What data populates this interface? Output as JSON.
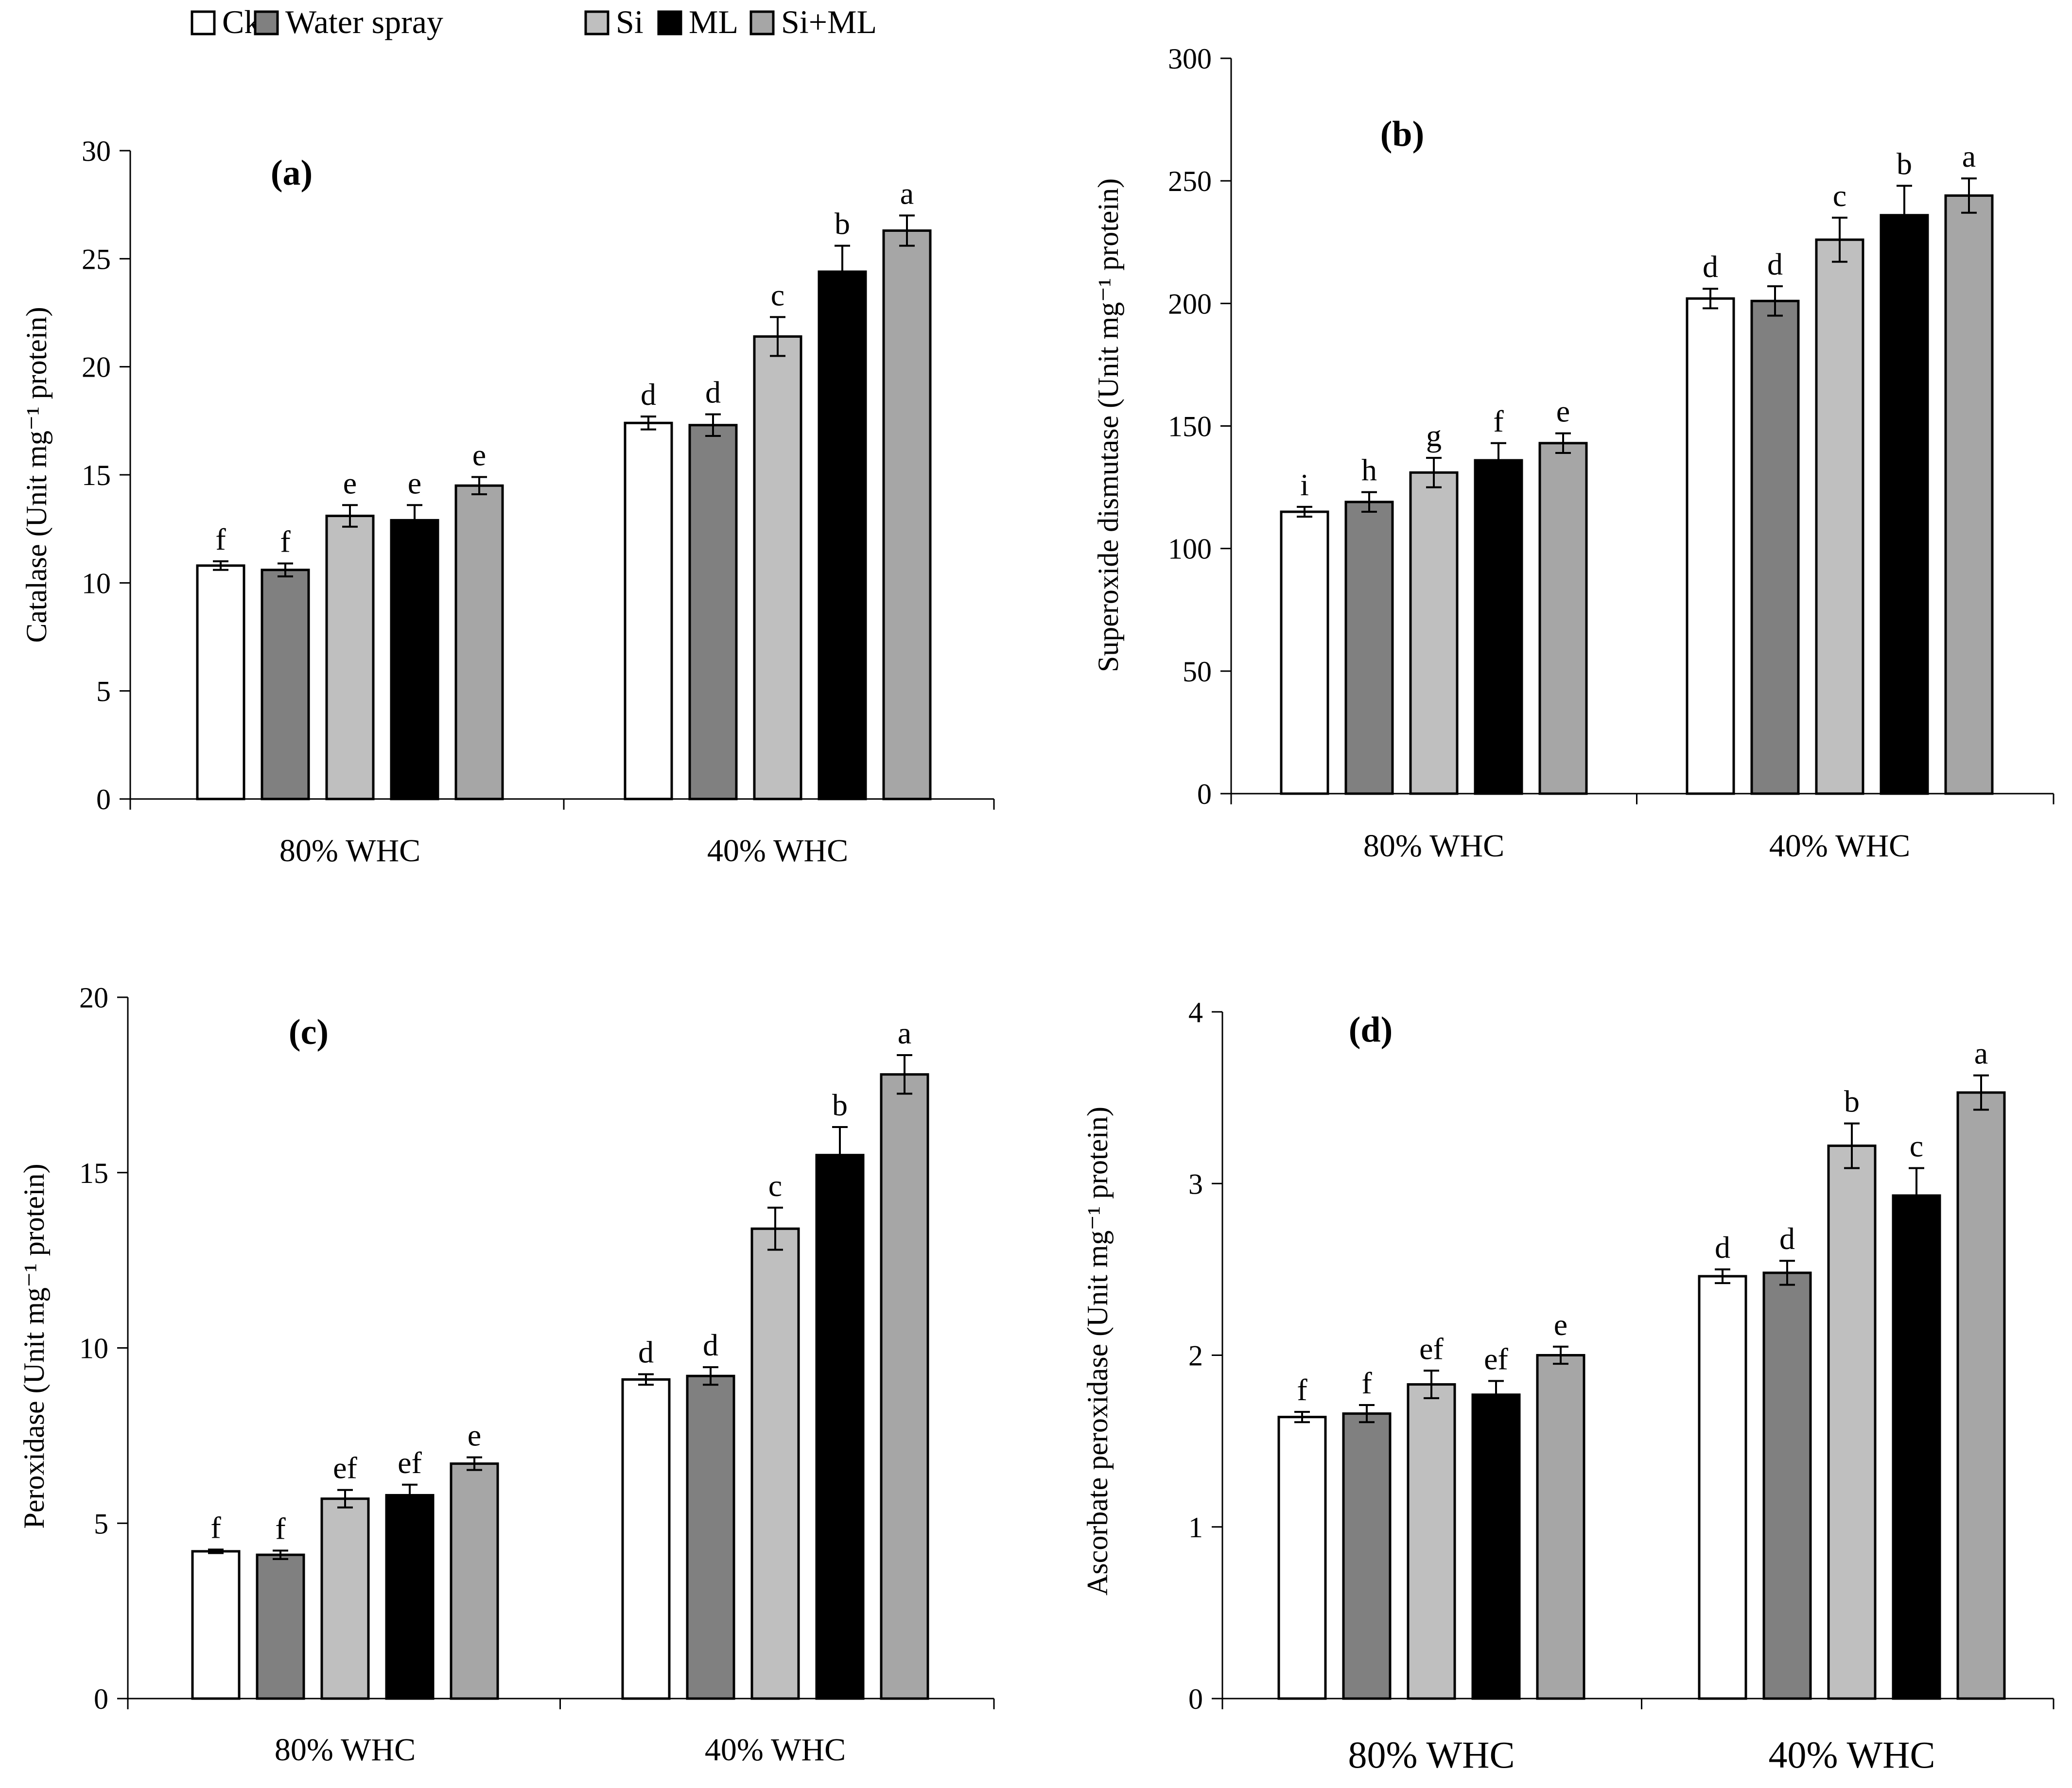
{
  "legend": [
    {
      "key": "ck",
      "label": "Ck",
      "color": "#ffffff"
    },
    {
      "key": "water",
      "label": "Water spray",
      "color": "#808080"
    },
    {
      "key": "si",
      "label": "Si",
      "color": "#bfbfbf"
    },
    {
      "key": "ml",
      "label": "ML",
      "color": "#000000"
    },
    {
      "key": "siml",
      "label": "Si+ML",
      "color": "#a6a6a6"
    }
  ],
  "chart_data": [
    {
      "panel": "a",
      "type": "bar",
      "title": "(a)",
      "ylabel": "Catalase (Unit mg⁻¹ protein)",
      "categories": [
        "80% WHC",
        "40% WHC"
      ],
      "ylim": [
        0,
        30
      ],
      "yticks": [
        0,
        5,
        10,
        15,
        20,
        25,
        30
      ],
      "series": [
        {
          "name": "Ck",
          "values": [
            10.8,
            17.4
          ],
          "errors": [
            0.2,
            0.3
          ],
          "labels": [
            "f",
            "d"
          ]
        },
        {
          "name": "Water spray",
          "values": [
            10.6,
            17.3
          ],
          "errors": [
            0.3,
            0.5
          ],
          "labels": [
            "f",
            "d"
          ]
        },
        {
          "name": "Si",
          "values": [
            13.1,
            21.4
          ],
          "errors": [
            0.5,
            0.9
          ],
          "labels": [
            "e",
            "c"
          ]
        },
        {
          "name": "ML",
          "values": [
            12.9,
            24.4
          ],
          "errors": [
            0.7,
            1.2
          ],
          "labels": [
            "e",
            "b"
          ]
        },
        {
          "name": "Si+ML",
          "values": [
            14.5,
            26.3
          ],
          "errors": [
            0.4,
            0.7
          ],
          "labels": [
            "e",
            "a"
          ]
        }
      ]
    },
    {
      "panel": "b",
      "type": "bar",
      "title": "(b)",
      "ylabel": "Superoxide dismutase (Unit mg⁻¹ protein)",
      "categories": [
        "80% WHC",
        "40% WHC"
      ],
      "ylim": [
        0,
        300
      ],
      "yticks": [
        0,
        50,
        100,
        150,
        200,
        250,
        300
      ],
      "series": [
        {
          "name": "Ck",
          "values": [
            115,
            202
          ],
          "errors": [
            2,
            4
          ],
          "labels": [
            "i",
            "d"
          ]
        },
        {
          "name": "Water spray",
          "values": [
            119,
            201
          ],
          "errors": [
            4,
            6
          ],
          "labels": [
            "h",
            "d"
          ]
        },
        {
          "name": "Si",
          "values": [
            131,
            226
          ],
          "errors": [
            6,
            9
          ],
          "labels": [
            "g",
            "c"
          ]
        },
        {
          "name": "ML",
          "values": [
            136,
            236
          ],
          "errors": [
            7,
            12
          ],
          "labels": [
            "f",
            "b"
          ]
        },
        {
          "name": "Si+ML",
          "values": [
            143,
            244
          ],
          "errors": [
            4,
            7
          ],
          "labels": [
            "e",
            "a"
          ]
        }
      ]
    },
    {
      "panel": "c",
      "type": "bar",
      "title": "(c)",
      "ylabel": "Peroxidase  (Unit mg⁻¹ protein)",
      "categories": [
        "80% WHC",
        "40% WHC"
      ],
      "ylim": [
        0,
        20
      ],
      "yticks": [
        0,
        5,
        10,
        15,
        20
      ],
      "series": [
        {
          "name": "Ck",
          "values": [
            4.2,
            9.1
          ],
          "errors": [
            0.05,
            0.15
          ],
          "labels": [
            "f",
            "d"
          ]
        },
        {
          "name": "Water spray",
          "values": [
            4.1,
            9.2
          ],
          "errors": [
            0.12,
            0.25
          ],
          "labels": [
            "f",
            "d"
          ]
        },
        {
          "name": "Si",
          "values": [
            5.7,
            13.4
          ],
          "errors": [
            0.25,
            0.6
          ],
          "labels": [
            "ef",
            "c"
          ]
        },
        {
          "name": "ML",
          "values": [
            5.8,
            15.5
          ],
          "errors": [
            0.3,
            0.8
          ],
          "labels": [
            "ef",
            "b"
          ]
        },
        {
          "name": "Si+ML",
          "values": [
            6.7,
            17.8
          ],
          "errors": [
            0.18,
            0.55
          ],
          "labels": [
            "e",
            "a"
          ]
        }
      ]
    },
    {
      "panel": "d",
      "type": "bar",
      "title": "(d)",
      "ylabel": "Ascorbate  peroxidase  (Unit mg⁻¹ protein)",
      "categories": [
        "80% WHC",
        "40% WHC"
      ],
      "ylim": [
        0,
        4
      ],
      "yticks": [
        0,
        1,
        2,
        3,
        4
      ],
      "series": [
        {
          "name": "Ck",
          "values": [
            1.64,
            2.46
          ],
          "errors": [
            0.03,
            0.04
          ],
          "labels": [
            "f",
            "d"
          ]
        },
        {
          "name": "Water spray",
          "values": [
            1.66,
            2.48
          ],
          "errors": [
            0.05,
            0.07
          ],
          "labels": [
            "f",
            "d"
          ]
        },
        {
          "name": "Si",
          "values": [
            1.83,
            3.22
          ],
          "errors": [
            0.08,
            0.13
          ],
          "labels": [
            "ef",
            "b"
          ]
        },
        {
          "name": "ML",
          "values": [
            1.77,
            2.93
          ],
          "errors": [
            0.08,
            0.16
          ],
          "labels": [
            "ef",
            "c"
          ]
        },
        {
          "name": "Si+ML",
          "values": [
            2.0,
            3.53
          ],
          "errors": [
            0.05,
            0.1
          ],
          "labels": [
            "e",
            "a"
          ]
        }
      ]
    }
  ]
}
